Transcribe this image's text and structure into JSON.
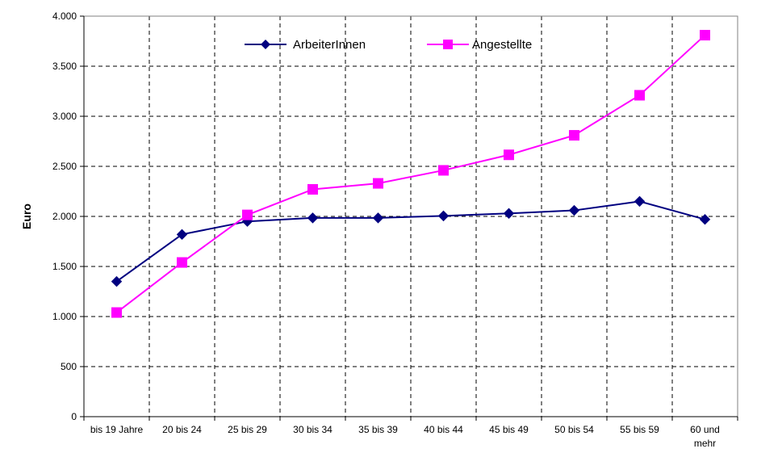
{
  "chart_data": {
    "type": "line",
    "categories": [
      "bis 19 Jahre",
      "20 bis 24",
      "25 bis 29",
      "30 bis 34",
      "35 bis 39",
      "40 bis 44",
      "45 bis 49",
      "50 bis 54",
      "55 bis 59",
      "60 und mehr"
    ],
    "category_lines": [
      [
        "bis 19 Jahre"
      ],
      [
        "20 bis 24"
      ],
      [
        "25 bis 29"
      ],
      [
        "30 bis 34"
      ],
      [
        "35 bis 39"
      ],
      [
        "40 bis 44"
      ],
      [
        "45 bis 49"
      ],
      [
        "50 bis 54"
      ],
      [
        "55 bis 59"
      ],
      [
        "60 und",
        "mehr"
      ]
    ],
    "series": [
      {
        "name": "ArbeiterInnen",
        "color": "#000080",
        "marker": "diamond",
        "values": [
          1350,
          1820,
          1950,
          1985,
          1985,
          2005,
          2030,
          2060,
          2150,
          1970
        ]
      },
      {
        "name": "Angestellte",
        "color": "#ff00ff",
        "marker": "square",
        "values": [
          1040,
          1540,
          2015,
          2270,
          2330,
          2460,
          2615,
          2810,
          3210,
          3810
        ]
      }
    ],
    "ylabel": "Euro",
    "ylim": [
      0,
      4000
    ],
    "yticks": [
      0,
      500,
      1000,
      1500,
      2000,
      2500,
      3000,
      3500,
      4000
    ],
    "ytick_labels": [
      "0",
      "500",
      "1.000",
      "1.500",
      "2.000",
      "2.500",
      "3.000",
      "3.500",
      "4.000"
    ],
    "grid": true,
    "grid_style": "dashed",
    "legend_position": "top"
  }
}
